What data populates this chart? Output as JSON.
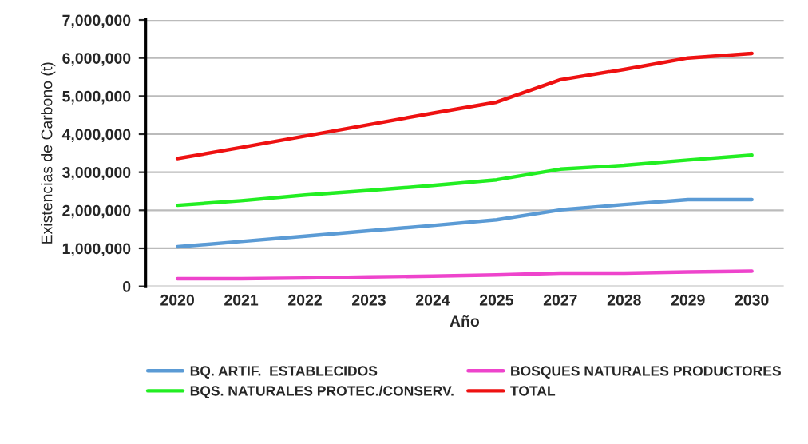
{
  "chart_data": {
    "type": "line",
    "xlabel": "Año",
    "ylabel": "Existencias de Carbono (t)",
    "categories": [
      "2020",
      "2021",
      "2022",
      "2023",
      "2024",
      "2025",
      "2027",
      "2028",
      "2029",
      "2030"
    ],
    "series": [
      {
        "name": "BQ. ARTIF.  ESTABLECIDOS",
        "color": "#5b9bd5",
        "values": [
          1040000,
          1180000,
          1320000,
          1460000,
          1600000,
          1750000,
          2010000,
          2150000,
          2280000,
          2280000
        ]
      },
      {
        "name": "BQS. NATURALES PROTEC./CONSERV.",
        "color": "#22ee22",
        "values": [
          2130000,
          2250000,
          2400000,
          2520000,
          2650000,
          2800000,
          3080000,
          3180000,
          3320000,
          3450000
        ]
      },
      {
        "name": "BOSQUES NATURALES PRODUCTORES",
        "color": "#ee44cc",
        "values": [
          200000,
          200000,
          220000,
          250000,
          270000,
          300000,
          350000,
          350000,
          380000,
          400000
        ]
      },
      {
        "name": "TOTAL",
        "color": "#ee1111",
        "values": [
          3360000,
          3650000,
          3950000,
          4250000,
          4550000,
          4840000,
          5430000,
          5700000,
          6000000,
          6120000
        ]
      }
    ],
    "ylim": [
      0,
      7000000
    ],
    "yticks": [
      {
        "value": 0,
        "label": "0"
      },
      {
        "value": 1000000,
        "label": "1,000,000"
      },
      {
        "value": 2000000,
        "label": "2,000,000"
      },
      {
        "value": 3000000,
        "label": "3,000,000"
      },
      {
        "value": 4000000,
        "label": "4,000,000"
      },
      {
        "value": 5000000,
        "label": "5,000,000"
      },
      {
        "value": 6000000,
        "label": "6,000,000"
      },
      {
        "value": 7000000,
        "label": "7,000,000"
      }
    ],
    "grid": "y",
    "legend": "bottom",
    "marker": "none",
    "line_style": "solid"
  }
}
